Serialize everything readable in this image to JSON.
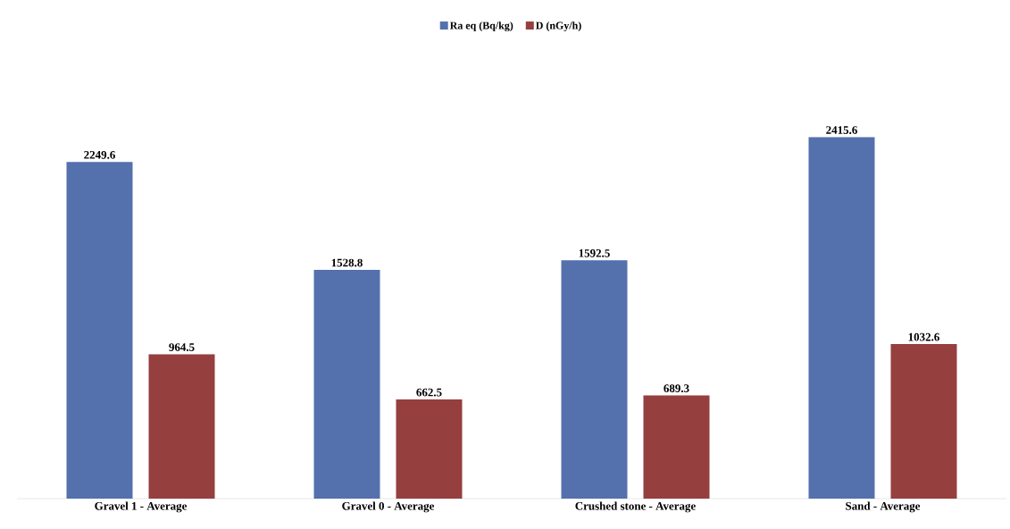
{
  "chart_data": {
    "type": "bar",
    "categories": [
      "Gravel 1 - Average",
      "Gravel 0 - Average",
      "Crushed stone - Average",
      "Sand - Average"
    ],
    "series": [
      {
        "name": "Ra eq (Bq/kg)",
        "color": "#5470ad",
        "values": [
          2249.6,
          1528.8,
          1592.5,
          2415.6
        ]
      },
      {
        "name": "D (nGy/h)",
        "color": "#953f3e",
        "values": [
          964.5,
          662.5,
          689.3,
          1032.6
        ]
      }
    ],
    "data_labels": true,
    "legend": "top"
  }
}
